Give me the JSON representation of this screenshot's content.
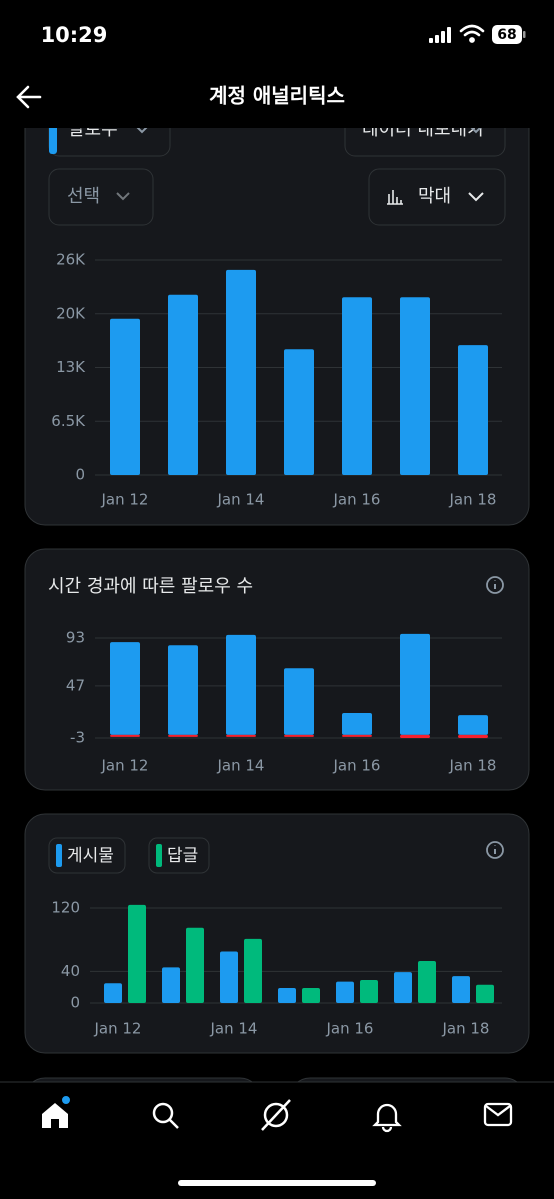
{
  "status_bar": {
    "time": "10:29",
    "battery": "68"
  },
  "header": {
    "title": "계정 애널리틱스"
  },
  "controls": {
    "metric": "팔로우",
    "export": "데이터 내보내기",
    "select": "선택",
    "chart_kind": "막대"
  },
  "chart_data": [
    {
      "type": "bar",
      "categories": [
        "Jan 12",
        null,
        "Jan 14",
        null,
        "Jan 16",
        null,
        "Jan 18"
      ],
      "series": [
        {
          "color": "#1d9bf0",
          "values": [
            18900,
            21800,
            24800,
            15200,
            21500,
            21500,
            15700
          ]
        }
      ],
      "ylim": [
        0,
        26000
      ],
      "yticks": [
        0,
        {
          "value": 6500,
          "label": "6.5K"
        },
        {
          "value": 13000,
          "label": "13K"
        },
        {
          "value": 19500,
          "label": "20K"
        },
        {
          "value": 26000,
          "label": "26K"
        }
      ],
      "grid": true
    },
    {
      "type": "bar",
      "title": "시간 경과에 따른 팔로우 수",
      "categories": [
        "Jan 12",
        null,
        "Jan 14",
        null,
        "Jan 16",
        null,
        "Jan 18"
      ],
      "series": [
        {
          "color": "#1d9bf0",
          "values": [
            89,
            86,
            96,
            64,
            21,
            97,
            19
          ]
        },
        {
          "color": "#f4212e",
          "values": [
            -1,
            -1,
            0,
            -1,
            -1,
            -3,
            -3
          ]
        }
      ],
      "ylim": [
        -3,
        97
      ],
      "yticks": [
        -3,
        47,
        93
      ],
      "grid": true
    },
    {
      "type": "grouped_bar",
      "categories": [
        "Jan 12",
        null,
        "Jan 14",
        null,
        "Jan 16",
        null,
        "Jan 18"
      ],
      "series": [
        {
          "name": "게시물",
          "color": "#1d9bf0",
          "values": [
            25,
            45,
            65,
            19,
            27,
            39,
            34
          ]
        },
        {
          "name": "답글",
          "color": "#00ba7c",
          "values": [
            124,
            95,
            81,
            19,
            29,
            53,
            23
          ]
        }
      ],
      "ylim": [
        0,
        125
      ],
      "yticks": [
        0,
        40,
        120
      ],
      "grid": true,
      "legend": "top-left"
    }
  ]
}
